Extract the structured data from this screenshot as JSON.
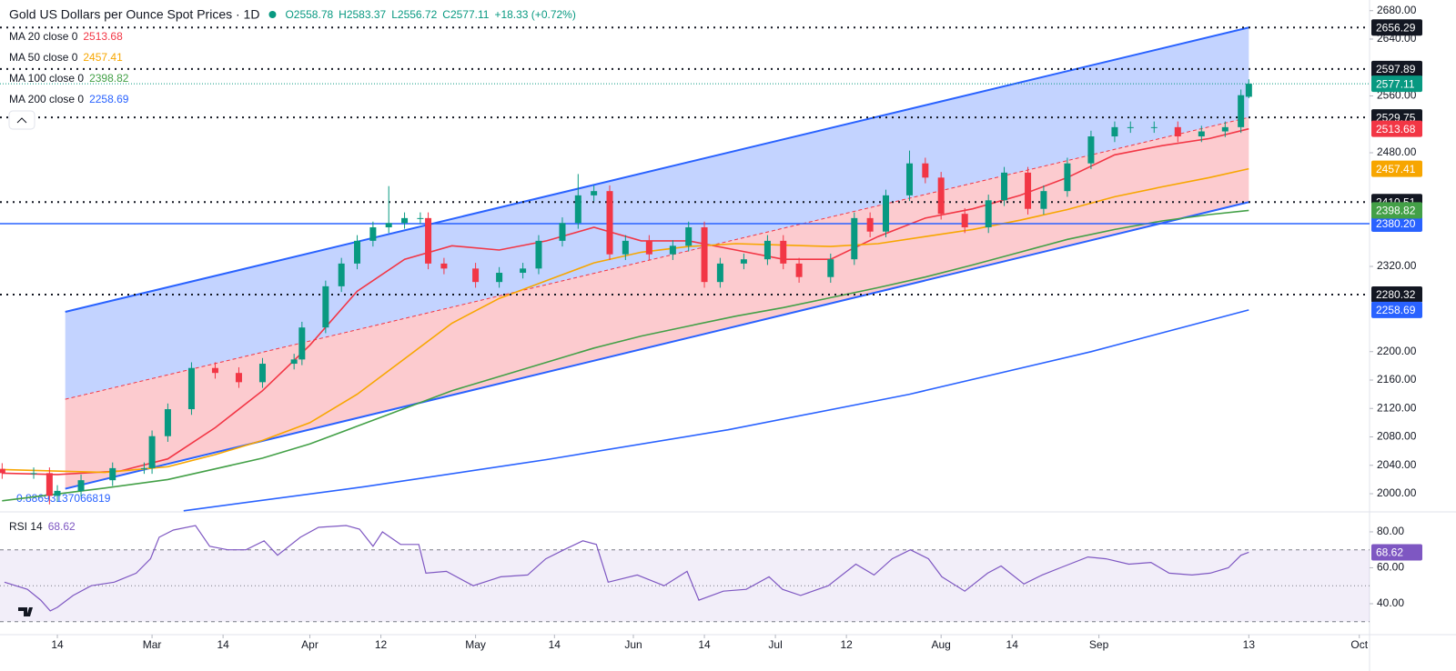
{
  "header": {
    "title": "Gold US Dollars per Ounce Spot Prices · 1D",
    "ohlc": [
      "O2558.78",
      "H2583.37",
      "L2556.72",
      "C2577.11",
      "+18.33 (+0.72%)"
    ]
  },
  "chart_data": [
    {
      "type": "candlestick",
      "x": [
        -7,
        -3,
        -1,
        0,
        3,
        7,
        11,
        12,
        14,
        17,
        20,
        23,
        26,
        30,
        31,
        34,
        36,
        38,
        40,
        42,
        44,
        46,
        47,
        49,
        53,
        56,
        59,
        61,
        64,
        66,
        68,
        70,
        72,
        75,
        78,
        80,
        82,
        84,
        87,
        90,
        92,
        94,
        98,
        101,
        103,
        105,
        108,
        110,
        112,
        115,
        118,
        120,
        123,
        125,
        128,
        131,
        134,
        136,
        139,
        142,
        145,
        148,
        150,
        151
      ],
      "open": [
        2035,
        2029,
        2029,
        1997,
        2004,
        2019,
        2036,
        2036,
        2081,
        2119,
        2177,
        2170,
        2157,
        2183,
        2189,
        2234,
        2292,
        2324,
        2356,
        2375,
        2381,
        2388,
        2388,
        2324,
        2317,
        2298,
        2311,
        2317,
        2356,
        2381,
        2420,
        2426,
        2337,
        2356,
        2337,
        2349,
        2375,
        2298,
        2324,
        2330,
        2356,
        2324,
        2305,
        2330,
        2388,
        2369,
        2420,
        2465,
        2445,
        2394,
        2375,
        2413,
        2452,
        2401,
        2426,
        2465,
        2503,
        2516,
        2516,
        2516,
        2503,
        2510,
        2516,
        2558.78
      ],
      "high": [
        2043,
        2037,
        2037,
        2012,
        2027,
        2044,
        2044,
        2089,
        2127,
        2185,
        2185,
        2178,
        2191,
        2197,
        2242,
        2300,
        2332,
        2364,
        2383,
        2433,
        2396,
        2396,
        2396,
        2332,
        2325,
        2319,
        2325,
        2364,
        2389,
        2450,
        2434,
        2434,
        2364,
        2364,
        2357,
        2383,
        2383,
        2332,
        2338,
        2364,
        2364,
        2332,
        2338,
        2396,
        2396,
        2428,
        2483,
        2473,
        2453,
        2402,
        2421,
        2460,
        2460,
        2434,
        2473,
        2511,
        2524,
        2524,
        2524,
        2524,
        2518,
        2524,
        2569,
        2583.37
      ],
      "low": [
        2021,
        2021,
        1985,
        1989,
        1996,
        2011,
        2028,
        2028,
        2073,
        2111,
        2162,
        2149,
        2149,
        2175,
        2181,
        2226,
        2284,
        2316,
        2348,
        2367,
        2373,
        2380,
        2316,
        2309,
        2290,
        2290,
        2303,
        2309,
        2348,
        2373,
        2412,
        2329,
        2329,
        2329,
        2329,
        2341,
        2290,
        2290,
        2316,
        2322,
        2316,
        2297,
        2297,
        2322,
        2361,
        2361,
        2412,
        2437,
        2386,
        2367,
        2367,
        2405,
        2393,
        2393,
        2418,
        2457,
        2495,
        2508,
        2508,
        2495,
        2495,
        2502,
        2508,
        2556.72
      ],
      "close": [
        2029,
        2029,
        1997,
        2004,
        2019,
        2036,
        2036,
        2081,
        2119,
        2177,
        2170,
        2157,
        2183,
        2189,
        2234,
        2292,
        2324,
        2356,
        2375,
        2381,
        2388,
        2388,
        2324,
        2317,
        2298,
        2311,
        2317,
        2356,
        2381,
        2420,
        2426,
        2337,
        2356,
        2337,
        2349,
        2375,
        2298,
        2324,
        2330,
        2356,
        2324,
        2305,
        2330,
        2388,
        2369,
        2420,
        2465,
        2445,
        2394,
        2375,
        2413,
        2452,
        2401,
        2426,
        2465,
        2503,
        2516,
        2516,
        2516,
        2503,
        2510,
        2516,
        2561,
        2577.11
      ],
      "up_color": "#089981",
      "down_color": "#f23645",
      "series": [
        {
          "name": "MA 20 close 0",
          "color": "#f23645",
          "x": [
            -7,
            0,
            8,
            14,
            20,
            26,
            32,
            38,
            44,
            50,
            56,
            62,
            68,
            74,
            80,
            86,
            92,
            98,
            104,
            110,
            116,
            122,
            128,
            134,
            140,
            146,
            151
          ],
          "values": [
            2029,
            2027,
            2032,
            2049,
            2093,
            2145,
            2209,
            2285,
            2330,
            2349,
            2343,
            2356,
            2375,
            2356,
            2356,
            2343,
            2330,
            2330,
            2362,
            2388,
            2401,
            2420,
            2445,
            2477,
            2490,
            2500,
            2513.68
          ]
        },
        {
          "name": "MA 50 close 0",
          "color": "#f7a600",
          "x": [
            -7,
            6,
            14,
            20,
            26,
            32,
            38,
            44,
            50,
            56,
            62,
            68,
            74,
            80,
            86,
            92,
            98,
            104,
            110,
            116,
            122,
            128,
            134,
            140,
            146,
            151
          ],
          "values": [
            2034,
            2030,
            2038,
            2055,
            2075,
            2100,
            2140,
            2190,
            2240,
            2275,
            2300,
            2325,
            2340,
            2348,
            2352,
            2350,
            2348,
            2352,
            2362,
            2372,
            2385,
            2400,
            2418,
            2432,
            2445,
            2457.41
          ]
        },
        {
          "name": "MA 100 close 0",
          "color": "#43a047",
          "x": [
            -7,
            6,
            14,
            20,
            26,
            32,
            38,
            44,
            50,
            56,
            62,
            68,
            74,
            80,
            86,
            92,
            98,
            104,
            110,
            116,
            122,
            128,
            134,
            140,
            146,
            151
          ],
          "values": [
            1990,
            2008,
            2020,
            2035,
            2050,
            2070,
            2095,
            2120,
            2145,
            2165,
            2185,
            2205,
            2222,
            2236,
            2250,
            2262,
            2276,
            2290,
            2305,
            2322,
            2340,
            2358,
            2372,
            2384,
            2393,
            2398.82
          ]
        },
        {
          "name": "MA 200 close 0",
          "color": "#2962ff",
          "x": [
            16,
            39,
            62,
            85,
            108,
            131,
            151
          ],
          "values": [
            1976,
            2010,
            2048,
            2090,
            2140,
            2200,
            2258.69
          ]
        }
      ],
      "channel": {
        "x": [
          1,
          151
        ],
        "upper": [
          2256,
          2656.29
        ],
        "middle": [
          2133,
          2529.75
        ],
        "lower": [
          2007,
          2410.51
        ],
        "line_color": "#2962ff",
        "mid_color": "#f23645",
        "upper_fill": "rgba(41,98,255,0.28)",
        "lower_fill": "rgba(242,54,69,0.26)",
        "label": "0.88693137066819"
      },
      "levels": [
        {
          "value": 2656.29,
          "style": "dotted",
          "color": "#131722"
        },
        {
          "value": 2597.89,
          "style": "dotted",
          "color": "#131722"
        },
        {
          "value": 2529.75,
          "style": "dotted",
          "color": "#131722"
        },
        {
          "value": 2410.51,
          "style": "dotted",
          "color": "#131722"
        },
        {
          "value": 2280.32,
          "style": "dotted",
          "color": "#131722"
        },
        {
          "value": 2380.2,
          "label": "2380.20",
          "style": "solid",
          "color": "#2962ff"
        }
      ],
      "xlim": [
        -7.27,
        166.3
      ],
      "ylim": [
        1975.7,
        2695
      ],
      "xticks": [
        {
          "value": 0,
          "label": "14"
        },
        {
          "value": 12,
          "label": "Mar"
        },
        {
          "value": 21,
          "label": "14"
        },
        {
          "value": 32,
          "label": "Apr"
        },
        {
          "value": 41,
          "label": "12"
        },
        {
          "value": 53,
          "label": "May"
        },
        {
          "value": 63,
          "label": "14"
        },
        {
          "value": 73,
          "label": "Jun"
        },
        {
          "value": 82,
          "label": "14"
        },
        {
          "value": 91,
          "label": "Jul"
        },
        {
          "value": 100,
          "label": "12"
        },
        {
          "value": 112,
          "label": "Aug"
        },
        {
          "value": 121,
          "label": "14"
        },
        {
          "value": 132,
          "label": "Sep"
        },
        {
          "value": 151,
          "label": "13"
        },
        {
          "value": 165,
          "label": "Oct"
        }
      ],
      "yticks": [
        {
          "value": 2000,
          "label": "2000.00"
        },
        {
          "value": 2040,
          "label": "2040.00"
        },
        {
          "value": 2080,
          "label": "2080.00"
        },
        {
          "value": 2120,
          "label": "2120.00"
        },
        {
          "value": 2160,
          "label": "2160.00"
        },
        {
          "value": 2200,
          "label": "2200.00"
        },
        {
          "value": 2320,
          "label": "2320.00"
        },
        {
          "value": 2480,
          "label": "2480.00"
        },
        {
          "value": 2560,
          "label": "2560.00"
        },
        {
          "value": 2640,
          "label": "2640.00"
        },
        {
          "value": 2680,
          "label": "2680.00"
        }
      ]
    },
    {
      "type": "line",
      "name": "RSI 14",
      "color": "#7e57c2",
      "band_fill": "rgba(126,87,194,0.1)",
      "bands": [
        30,
        50,
        70
      ],
      "x": [
        -6.7,
        -3.8,
        -2.1,
        -0.9,
        0,
        2,
        4.3,
        7.2,
        10,
        11.8,
        12.9,
        14.7,
        17.5,
        19.3,
        21.6,
        23.9,
        26.2,
        27.9,
        30.8,
        33.1,
        36.6,
        38.3,
        40,
        41.2,
        43.5,
        45.8,
        46.7,
        49.3,
        52.7,
        56.2,
        59.6,
        61.9,
        64.2,
        66.6,
        68.3,
        69.8,
        73.5,
        76.9,
        79.8,
        81.3,
        84.4,
        87.3,
        90.2,
        91.9,
        94.2,
        97.7,
        101.2,
        103.5,
        105.8,
        108.1,
        110.4,
        112.1,
        115,
        117.9,
        119.6,
        122.5,
        124.8,
        127.1,
        130.6,
        132.9,
        135.8,
        138.6,
        140.9,
        143.8,
        146.1,
        148.4,
        150,
        151
      ],
      "values": [
        52,
        48,
        42,
        36,
        38,
        44.6,
        50,
        52,
        57,
        65,
        77,
        81,
        83.5,
        72,
        70,
        70,
        75,
        67,
        77,
        82.5,
        83.5,
        81.5,
        72,
        80,
        73,
        73,
        57,
        58,
        50,
        55,
        56,
        65,
        70,
        75,
        73,
        52,
        56,
        50,
        58,
        42,
        47,
        48,
        55,
        48,
        44.6,
        50,
        62,
        56,
        65,
        70,
        65,
        55,
        47,
        57,
        61,
        51,
        56,
        60,
        66,
        65,
        62,
        63,
        57,
        56,
        57,
        60,
        67,
        68.62
      ],
      "ylim": [
        22.8,
        90.1
      ],
      "yticks": [
        {
          "value": 40,
          "label": "40.00"
        },
        {
          "value": 60,
          "label": "60.00"
        },
        {
          "value": 80,
          "label": "80.00"
        }
      ]
    }
  ]
}
